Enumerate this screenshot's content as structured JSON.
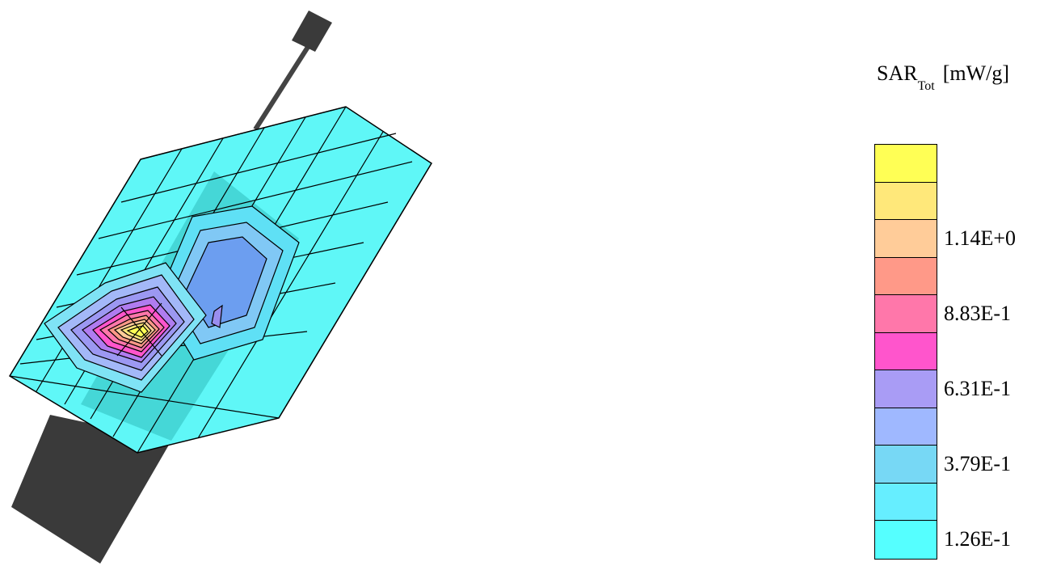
{
  "legend": {
    "title_main": "SAR",
    "title_sub": "Tot",
    "title_unit": "[mW/g]",
    "bands": [
      "#ffff55",
      "#ffe87a",
      "#ffcc99",
      "#ff9988",
      "#ff77aa",
      "#ff55cc",
      "#a99cf5",
      "#9fb8ff",
      "#77d8f5",
      "#66eeff",
      "#55ffff"
    ],
    "ticks": [
      {
        "label": "1.14E+0",
        "band": 2
      },
      {
        "label": "8.83E-1",
        "band": 4
      },
      {
        "label": "6.31E-1",
        "band": 6
      },
      {
        "label": "3.79E-1",
        "band": 8
      },
      {
        "label": "1.26E-1",
        "band": 10
      }
    ]
  },
  "colors": {
    "surface": "#5ff7f7",
    "phone": "#3a3a3a",
    "grid": "#000000"
  }
}
